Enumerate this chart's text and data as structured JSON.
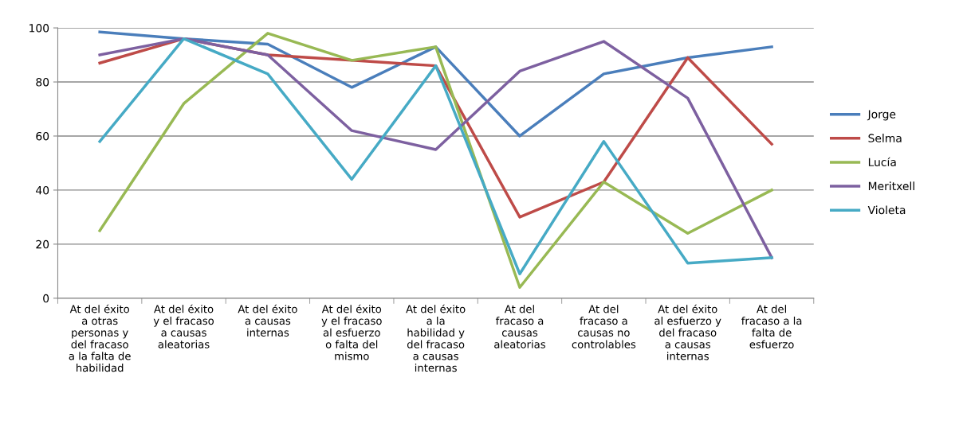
{
  "chart_data": {
    "type": "line",
    "categories": [
      "At del éxito\na otras\npersonas y\ndel fracaso\na la falta de\nhabilidad",
      "At del éxito\ny el fracaso\na causas\naleatorias",
      "At del éxito\na causas\ninternas",
      "At del éxito\ny el fracaso\nal esfuerzo\no falta del\nmismo",
      "At del éxito\na la\nhabilidad y\ndel fracaso\na causas\ninternas",
      "At del\nfracaso a\ncausas\naleatorias",
      "At del\nfracaso a\ncausas no\ncontrolables",
      "At del éxito\nal esfuerzo y\ndel fracaso\na causas\ninternas",
      "At del\nfracaso a la\nfalta de\nesfuerzo"
    ],
    "series": [
      {
        "name": "Jorge",
        "color": "#4a7ebb",
        "values": [
          98.5,
          96,
          94,
          78,
          93,
          60,
          83,
          89,
          93
        ]
      },
      {
        "name": "Selma",
        "color": "#be4b48",
        "values": [
          87,
          96,
          90,
          88,
          86,
          30,
          43,
          89,
          57
        ]
      },
      {
        "name": "Lucía",
        "color": "#98b954",
        "values": [
          25,
          72,
          98,
          88,
          93,
          4,
          43,
          24,
          40
        ]
      },
      {
        "name": "Meritxell",
        "color": "#7d60a0",
        "values": [
          90,
          96,
          90,
          62,
          55,
          84,
          95,
          74,
          15
        ]
      },
      {
        "name": "Violeta",
        "color": "#46aac5",
        "values": [
          58,
          96,
          83,
          44,
          86,
          9,
          58,
          13,
          15
        ]
      }
    ],
    "ylim": [
      0,
      100
    ],
    "yticks": [
      0,
      20,
      40,
      60,
      80,
      100
    ],
    "grid": "y",
    "legend": "right",
    "marker": "none",
    "line_style": "solid"
  }
}
